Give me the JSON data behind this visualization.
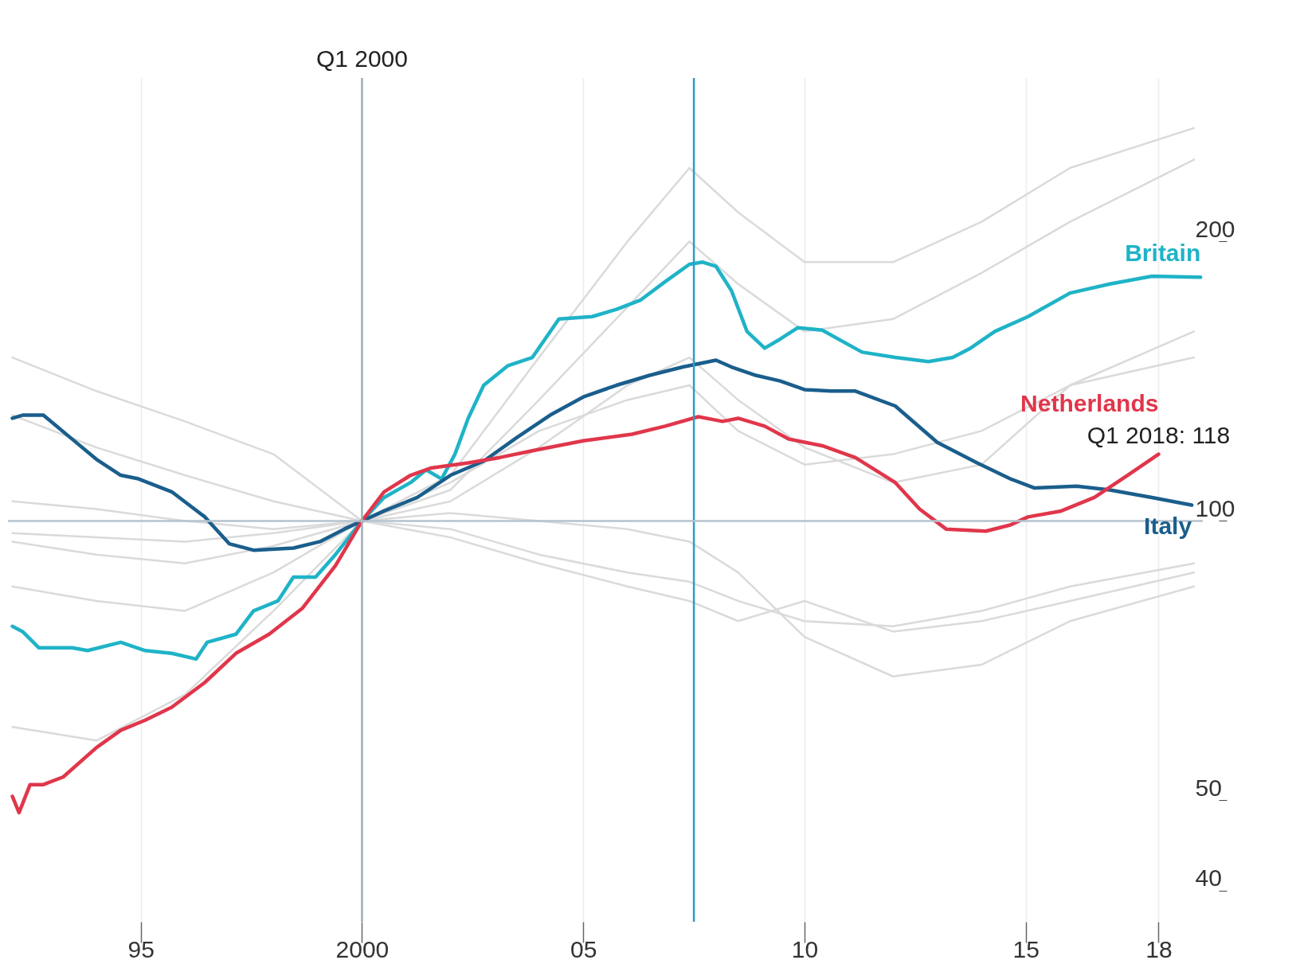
{
  "chart_data": {
    "type": "line",
    "log": "y",
    "grid": "x",
    "legend": false,
    "marker": "none",
    "line_style": "solid",
    "xlim": [
      1992,
      2019
    ],
    "xticks": [
      {
        "value": 1995,
        "label": "95"
      },
      2000,
      {
        "value": 2005,
        "label": "05"
      },
      {
        "value": 2010,
        "label": "10"
      },
      {
        "value": 2015,
        "label": "15"
      },
      {
        "value": 2018,
        "label": "18"
      }
    ],
    "ylim": [
      37,
      300
    ],
    "yticks": [
      40,
      50,
      100,
      200
    ],
    "series": [
      {
        "color": "#dadada",
        "x": [
          1992.1,
          1994,
          1996,
          1998,
          2000,
          2002,
          2004,
          2006,
          2007.4,
          2008.5,
          2010,
          2012,
          2014,
          2016,
          2018.8
        ],
        "values": [
          150,
          138,
          128,
          118,
          100,
          112,
          150,
          200,
          240,
          215,
          190,
          190,
          210,
          240,
          265
        ]
      },
      {
        "color": "#dadada",
        "x": [
          1992.1,
          1994,
          1996,
          1998,
          2000,
          2002,
          2004,
          2006,
          2007.4,
          2008.5,
          2010,
          2012,
          2014,
          2016,
          2018.8
        ],
        "values": [
          130,
          120,
          112,
          105,
          100,
          108,
          135,
          170,
          200,
          180,
          160,
          165,
          185,
          210,
          245
        ]
      },
      {
        "color": "#dadada",
        "x": [
          1992.1,
          1994,
          1996,
          1998,
          2000,
          2002,
          2004,
          2006,
          2007.4,
          2008.5,
          2010,
          2012,
          2014,
          2016,
          2018.8
        ],
        "values": [
          95,
          92,
          90,
          94,
          100,
          105,
          120,
          140,
          150,
          135,
          120,
          110,
          115,
          140,
          160
        ]
      },
      {
        "color": "#dadada",
        "x": [
          1992.1,
          1994,
          1996,
          1998,
          2000,
          2002,
          2004,
          2006,
          2007.4,
          2008.5,
          2010,
          2012,
          2014,
          2016,
          2018.8
        ],
        "values": [
          97,
          96,
          95,
          97,
          100,
          98,
          92,
          88,
          86,
          82,
          78,
          77,
          80,
          85,
          90
        ]
      },
      {
        "color": "#dadada",
        "x": [
          1992.1,
          1994,
          1996,
          1998,
          2000,
          2002,
          2004,
          2006,
          2007.4,
          2008.5,
          2010,
          2012,
          2014,
          2016,
          2018.8
        ],
        "values": [
          85,
          82,
          80,
          88,
          100,
          102,
          100,
          98,
          95,
          88,
          75,
          68,
          70,
          78,
          85
        ]
      },
      {
        "color": "#dadada",
        "x": [
          1992.1,
          1994,
          1996,
          1998,
          2000,
          2002,
          2004,
          2006,
          2007.4,
          2008.5,
          2010,
          2012,
          2014,
          2016,
          2018.8
        ],
        "values": [
          105,
          103,
          100,
          98,
          100,
          96,
          90,
          85,
          82,
          78,
          82,
          76,
          78,
          82,
          88
        ]
      },
      {
        "color": "#dadada",
        "x": [
          1992.1,
          1994,
          1996,
          1998,
          2000,
          2002,
          2004,
          2006,
          2007.4,
          2008.5,
          2010,
          2012,
          2014,
          2016,
          2018.8
        ],
        "values": [
          60,
          58,
          65,
          80,
          100,
          110,
          125,
          135,
          140,
          125,
          115,
          118,
          125,
          140,
          150
        ]
      },
      {
        "name": "Britain",
        "color": "#1fb3c7",
        "x": [
          1992.1,
          1992.33,
          1992.7,
          1993.45,
          1993.8,
          1994.55,
          1995.1,
          1995.7,
          1996.25,
          1996.5,
          1997.15,
          1997.55,
          1998.1,
          1998.45,
          1998.95,
          1999.4,
          2000,
          2000.5,
          2001.1,
          2001.45,
          2001.8,
          2002.1,
          2002.4,
          2002.75,
          2003.3,
          2003.85,
          2004.45,
          2005.2,
          2005.75,
          2006.3,
          2006.85,
          2007.4,
          2007.7,
          2008,
          2008.35,
          2008.7,
          2009.1,
          2009.45,
          2009.85,
          2010.4,
          2011.3,
          2012.05,
          2012.8,
          2013.35,
          2013.75,
          2014.3,
          2015.05,
          2016,
          2016.9,
          2017.85,
          2018.95
        ],
        "values": [
          77,
          76,
          73,
          73,
          72.5,
          74,
          72.5,
          72,
          71,
          74,
          75.5,
          80,
          82,
          87,
          87,
          92,
          100,
          106,
          110,
          113.5,
          111,
          118,
          129,
          140,
          147,
          150,
          165,
          166,
          169,
          173,
          181,
          189,
          190,
          188,
          177,
          160,
          153.5,
          157,
          161.5,
          160.5,
          152,
          150,
          148.5,
          150,
          153.5,
          160,
          166,
          176,
          180,
          183.5,
          183
        ]
      },
      {
        "name": "Italy",
        "color": "#1a5e8c",
        "x": [
          1992.1,
          1992.33,
          1992.8,
          1993.45,
          1994,
          1994.55,
          1994.95,
          1995.7,
          1996.45,
          1997,
          1997.55,
          1998.45,
          1999.05,
          1999.6,
          2000,
          2000.5,
          2001.25,
          2002,
          2002.75,
          2003.5,
          2004.25,
          2005,
          2005.75,
          2006.5,
          2007.25,
          2008,
          2008.35,
          2008.9,
          2009.45,
          2010,
          2010.6,
          2011.15,
          2012.05,
          2013,
          2013.9,
          2014.65,
          2015.2,
          2016.15,
          2016.9,
          2017.85,
          2018.75
        ],
        "values": [
          129,
          130,
          130,
          122.5,
          116.5,
          112,
          111,
          107.5,
          101,
          94.5,
          93,
          93.5,
          95,
          98,
          100,
          102.5,
          106,
          112,
          116,
          123,
          130,
          136,
          140,
          143.5,
          146.5,
          149,
          146.5,
          143.5,
          141.5,
          138.5,
          138,
          138,
          133,
          121.5,
          115.5,
          111,
          108.5,
          109,
          108,
          106,
          104
        ]
      },
      {
        "name": "Netherlands",
        "color": "#e0364b",
        "x": [
          1992.1,
          1992.25,
          1992.5,
          1992.8,
          1993.25,
          1994,
          1994.55,
          1995.1,
          1995.7,
          1996.45,
          1997.15,
          1997.9,
          1998.65,
          1999.4,
          2000,
          2000.5,
          2001.1,
          2001.55,
          2002.4,
          2003.1,
          2003.85,
          2005,
          2006.1,
          2006.85,
          2007.6,
          2008.15,
          2008.5,
          2009.1,
          2009.65,
          2010.4,
          2011.15,
          2012.05,
          2012.6,
          2013.2,
          2014.1,
          2014.65,
          2015.05,
          2015.8,
          2016.55,
          2017.3,
          2018
        ],
        "values": [
          50.5,
          48.5,
          52,
          52,
          53,
          57,
          59.5,
          61,
          63,
          67,
          72,
          75.5,
          80.5,
          89.5,
          100,
          107.5,
          112,
          114,
          115.5,
          117,
          119,
          122,
          124,
          126.5,
          129.5,
          128,
          129,
          126.5,
          122.5,
          120.5,
          117,
          110,
          103,
          98,
          97.5,
          99,
          101,
          102.5,
          106,
          112,
          118
        ]
      }
    ],
    "ref_lines": [
      {
        "axis": "y",
        "value": 100,
        "color": "#b4c2ce"
      },
      {
        "axis": "x",
        "value": 2000,
        "color": "#9eacb8"
      },
      {
        "axis": "x",
        "value": 2007.5,
        "color": "#2a9fc7"
      }
    ],
    "annotations": [
      {
        "text": "Q1 2000",
        "x": 2000,
        "y": 300
      },
      {
        "text": "Q1 2018: 118",
        "x": 2018,
        "y": 118
      }
    ]
  }
}
